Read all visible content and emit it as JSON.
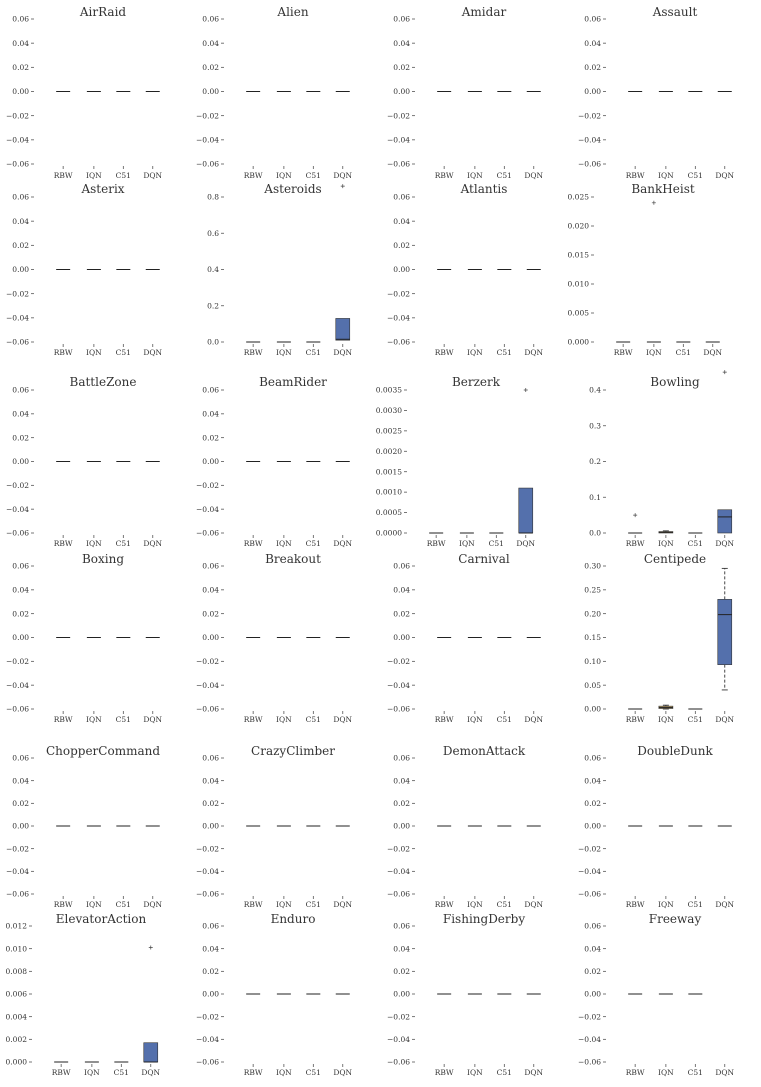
{
  "chart_data": [
    {
      "type": "box",
      "title": "AirRaid",
      "categories": [
        "RBW",
        "IQN",
        "C51",
        "DQN"
      ],
      "yticks": [
        "0.06",
        "0.04",
        "0.02",
        "0.00",
        "−0.02",
        "−0.04",
        "−0.06"
      ],
      "ylim": [
        -0.06,
        0.06
      ],
      "series": [
        {
          "name": "RBW",
          "median": 0
        },
        {
          "name": "IQN",
          "median": 0
        },
        {
          "name": "C51",
          "median": 0
        },
        {
          "name": "DQN",
          "median": 0
        }
      ]
    },
    {
      "type": "box",
      "title": "Alien",
      "categories": [
        "RBW",
        "IQN",
        "C51",
        "DQN"
      ],
      "yticks": [
        "0.06",
        "0.04",
        "0.02",
        "0.00",
        "−0.02",
        "−0.04",
        "−0.06"
      ],
      "ylim": [
        -0.06,
        0.06
      ],
      "series": [
        {
          "name": "RBW",
          "median": 0
        },
        {
          "name": "IQN",
          "median": 0
        },
        {
          "name": "C51",
          "median": 0
        },
        {
          "name": "DQN",
          "median": 0
        }
      ]
    },
    {
      "type": "box",
      "title": "Amidar",
      "categories": [
        "RBW",
        "IQN",
        "C51",
        "DQN"
      ],
      "yticks": [
        "0.06",
        "0.04",
        "0.02",
        "0.00",
        "−0.02",
        "−0.04",
        "−0.06"
      ],
      "ylim": [
        -0.06,
        0.06
      ],
      "series": [
        {
          "name": "RBW",
          "median": 0
        },
        {
          "name": "IQN",
          "median": 0
        },
        {
          "name": "C51",
          "median": 0
        },
        {
          "name": "DQN",
          "median": 0
        }
      ]
    },
    {
      "type": "box",
      "title": "Assault",
      "categories": [
        "RBW",
        "IQN",
        "C51",
        "DQN"
      ],
      "yticks": [
        "0.06",
        "0.04",
        "0.02",
        "0.00",
        "−0.02",
        "−0.04",
        "−0.06"
      ],
      "ylim": [
        -0.06,
        0.06
      ],
      "series": [
        {
          "name": "RBW",
          "median": 0
        },
        {
          "name": "IQN",
          "median": 0
        },
        {
          "name": "C51",
          "median": 0
        },
        {
          "name": "DQN",
          "median": 0
        }
      ]
    },
    {
      "type": "box",
      "title": "Asterix",
      "categories": [
        "RBW",
        "IQN",
        "C51",
        "DQN"
      ],
      "yticks": [
        "0.06",
        "0.04",
        "0.02",
        "0.00",
        "−0.02",
        "−0.04",
        "−0.06"
      ],
      "ylim": [
        -0.06,
        0.06
      ],
      "series": [
        {
          "name": "RBW",
          "median": 0
        },
        {
          "name": "IQN",
          "median": 0
        },
        {
          "name": "C51",
          "median": 0
        },
        {
          "name": "DQN",
          "median": 0
        }
      ]
    },
    {
      "type": "box",
      "title": "Asteroids",
      "categories": [
        "RBW",
        "IQN",
        "C51",
        "DQN"
      ],
      "yticks": [
        "0.8",
        "0.6",
        "0.4",
        "0.2",
        "0.0"
      ],
      "ylim": [
        0,
        0.8
      ],
      "series": [
        {
          "name": "RBW",
          "median": 0
        },
        {
          "name": "IQN",
          "median": 0
        },
        {
          "name": "C51",
          "median": 0
        },
        {
          "name": "DQN",
          "q1": 0.01,
          "median": 0.015,
          "q3": 0.13,
          "whisker_low": 0.01,
          "whisker_high": 0.13,
          "outliers": [
            0.86
          ]
        }
      ]
    },
    {
      "type": "box",
      "title": "Atlantis",
      "categories": [
        "RBW",
        "IQN",
        "C51",
        "DQN"
      ],
      "yticks": [
        "0.06",
        "0.04",
        "0.02",
        "0.00",
        "−0.02",
        "−0.04",
        "−0.06"
      ],
      "ylim": [
        -0.06,
        0.06
      ],
      "series": [
        {
          "name": "RBW",
          "median": 0
        },
        {
          "name": "IQN",
          "median": 0
        },
        {
          "name": "C51",
          "median": 0
        },
        {
          "name": "DQN",
          "median": 0
        }
      ]
    },
    {
      "type": "box",
      "title": "BankHeist",
      "categories": [
        "RBW",
        "IQN",
        "C51",
        "DQN"
      ],
      "yticks": [
        "0.025",
        "0.020",
        "0.015",
        "0.010",
        "0.005",
        "0.000"
      ],
      "ylim": [
        0,
        0.025
      ],
      "series": [
        {
          "name": "RBW",
          "median": 0
        },
        {
          "name": "IQN",
          "median": 0,
          "outliers": [
            0.024
          ]
        },
        {
          "name": "C51",
          "median": 0
        },
        {
          "name": "DQN",
          "median": 0
        }
      ]
    },
    {
      "type": "box",
      "title": "BattleZone",
      "categories": [
        "RBW",
        "IQN",
        "C51",
        "DQN"
      ],
      "yticks": [
        "0.06",
        "0.04",
        "0.02",
        "0.00",
        "−0.02",
        "−0.04",
        "−0.06"
      ],
      "ylim": [
        -0.06,
        0.06
      ],
      "series": [
        {
          "name": "RBW",
          "median": 0
        },
        {
          "name": "IQN",
          "median": 0
        },
        {
          "name": "C51",
          "median": 0
        },
        {
          "name": "DQN",
          "median": 0
        }
      ]
    },
    {
      "type": "box",
      "title": "BeamRider",
      "categories": [
        "RBW",
        "IQN",
        "C51",
        "DQN"
      ],
      "yticks": [
        "0.06",
        "0.04",
        "0.02",
        "0.00",
        "−0.02",
        "−0.04",
        "−0.06"
      ],
      "ylim": [
        -0.06,
        0.06
      ],
      "series": [
        {
          "name": "RBW",
          "median": 0
        },
        {
          "name": "IQN",
          "median": 0
        },
        {
          "name": "C51",
          "median": 0
        },
        {
          "name": "DQN",
          "median": 0
        }
      ]
    },
    {
      "type": "box",
      "title": "Berzerk",
      "categories": [
        "RBW",
        "IQN",
        "C51",
        "DQN"
      ],
      "yticks": [
        "0.0035",
        "0.0030",
        "0.0025",
        "0.0020",
        "0.0015",
        "0.0010",
        "0.0005",
        "0.0000"
      ],
      "ylim": [
        0,
        0.0035
      ],
      "series": [
        {
          "name": "RBW",
          "median": 0
        },
        {
          "name": "IQN",
          "median": 0
        },
        {
          "name": "C51",
          "median": 0
        },
        {
          "name": "DQN",
          "q1": 0,
          "median": 0,
          "q3": 0.0011,
          "whisker_low": 0,
          "whisker_high": 0.0011,
          "outliers": [
            0.0035
          ]
        }
      ]
    },
    {
      "type": "box",
      "title": "Bowling",
      "categories": [
        "RBW",
        "IQN",
        "C51",
        "DQN"
      ],
      "yticks": [
        "0.4",
        "0.3",
        "0.2",
        "0.1",
        "0.0"
      ],
      "ylim": [
        0,
        0.4
      ],
      "series": [
        {
          "name": "RBW",
          "median": 0,
          "outliers": [
            0.05
          ]
        },
        {
          "name": "IQN",
          "q1": 0,
          "median": 0.002,
          "q3": 0.004,
          "whisker_low": 0,
          "whisker_high": 0.006
        },
        {
          "name": "C51",
          "median": 0
        },
        {
          "name": "DQN",
          "q1": 0,
          "median": 0.045,
          "q3": 0.065,
          "whisker_low": 0,
          "whisker_high": 0.065,
          "outliers": [
            0.45
          ]
        }
      ]
    },
    {
      "type": "box",
      "title": "Boxing",
      "categories": [
        "RBW",
        "IQN",
        "C51",
        "DQN"
      ],
      "yticks": [
        "0.06",
        "0.04",
        "0.02",
        "0.00",
        "−0.02",
        "−0.04",
        "−0.06"
      ],
      "ylim": [
        -0.06,
        0.06
      ],
      "series": [
        {
          "name": "RBW",
          "median": 0
        },
        {
          "name": "IQN",
          "median": 0
        },
        {
          "name": "C51",
          "median": 0
        },
        {
          "name": "DQN",
          "median": 0
        }
      ]
    },
    {
      "type": "box",
      "title": "Breakout",
      "categories": [
        "RBW",
        "IQN",
        "C51",
        "DQN"
      ],
      "yticks": [
        "0.06",
        "0.04",
        "0.02",
        "0.00",
        "−0.02",
        "−0.04",
        "−0.06"
      ],
      "ylim": [
        -0.06,
        0.06
      ],
      "series": [
        {
          "name": "RBW",
          "median": 0
        },
        {
          "name": "IQN",
          "median": 0
        },
        {
          "name": "C51",
          "median": 0
        },
        {
          "name": "DQN",
          "median": 0
        }
      ]
    },
    {
      "type": "box",
      "title": "Carnival",
      "categories": [
        "RBW",
        "IQN",
        "C51",
        "DQN"
      ],
      "yticks": [
        "0.06",
        "0.04",
        "0.02",
        "0.00",
        "−0.02",
        "−0.04",
        "−0.06"
      ],
      "ylim": [
        -0.06,
        0.06
      ],
      "series": [
        {
          "name": "RBW",
          "median": 0
        },
        {
          "name": "IQN",
          "median": 0
        },
        {
          "name": "C51",
          "median": 0
        },
        {
          "name": "DQN",
          "median": 0
        }
      ]
    },
    {
      "type": "box",
      "title": "Centipede",
      "categories": [
        "RBW",
        "IQN",
        "C51",
        "DQN"
      ],
      "yticks": [
        "0.30",
        "0.25",
        "0.20",
        "0.15",
        "0.10",
        "0.05",
        "0.00"
      ],
      "ylim": [
        0,
        0.3
      ],
      "series": [
        {
          "name": "RBW",
          "median": 0
        },
        {
          "name": "IQN",
          "q1": 0.001,
          "median": 0.003,
          "q3": 0.006,
          "whisker_low": 0,
          "whisker_high": 0.008
        },
        {
          "name": "C51",
          "median": 0
        },
        {
          "name": "DQN",
          "q1": 0.093,
          "median": 0.198,
          "q3": 0.23,
          "whisker_low": 0.04,
          "whisker_high": 0.295
        }
      ]
    },
    {
      "type": "box",
      "title": "ChopperCommand",
      "categories": [
        "RBW",
        "IQN",
        "C51",
        "DQN"
      ],
      "yticks": [
        "0.06",
        "0.04",
        "0.02",
        "0.00",
        "−0.02",
        "−0.04",
        "−0.06"
      ],
      "ylim": [
        -0.06,
        0.06
      ],
      "series": [
        {
          "name": "RBW",
          "median": 0
        },
        {
          "name": "IQN",
          "median": 0
        },
        {
          "name": "C51",
          "median": 0
        },
        {
          "name": "DQN",
          "median": 0
        }
      ]
    },
    {
      "type": "box",
      "title": "CrazyClimber",
      "categories": [
        "RBW",
        "IQN",
        "C51",
        "DQN"
      ],
      "yticks": [
        "0.06",
        "0.04",
        "0.02",
        "0.00",
        "−0.02",
        "−0.04",
        "−0.06"
      ],
      "ylim": [
        -0.06,
        0.06
      ],
      "series": [
        {
          "name": "RBW",
          "median": 0
        },
        {
          "name": "IQN",
          "median": 0
        },
        {
          "name": "C51",
          "median": 0
        },
        {
          "name": "DQN",
          "median": 0
        }
      ]
    },
    {
      "type": "box",
      "title": "DemonAttack",
      "categories": [
        "RBW",
        "IQN",
        "C51",
        "DQN"
      ],
      "yticks": [
        "0.06",
        "0.04",
        "0.02",
        "0.00",
        "−0.02",
        "−0.04",
        "−0.06"
      ],
      "ylim": [
        -0.06,
        0.06
      ],
      "series": [
        {
          "name": "RBW",
          "median": 0
        },
        {
          "name": "IQN",
          "median": 0
        },
        {
          "name": "C51",
          "median": 0
        },
        {
          "name": "DQN",
          "median": 0
        }
      ]
    },
    {
      "type": "box",
      "title": "DoubleDunk",
      "categories": [
        "RBW",
        "IQN",
        "C51",
        "DQN"
      ],
      "yticks": [
        "0.06",
        "0.04",
        "0.02",
        "0.00",
        "−0.02",
        "−0.04",
        "−0.06"
      ],
      "ylim": [
        -0.06,
        0.06
      ],
      "series": [
        {
          "name": "RBW",
          "median": 0
        },
        {
          "name": "IQN",
          "median": 0
        },
        {
          "name": "C51",
          "median": 0
        },
        {
          "name": "DQN",
          "median": 0
        }
      ]
    },
    {
      "type": "box",
      "title": "ElevatorAction",
      "categories": [
        "RBW",
        "IQN",
        "C51",
        "DQN"
      ],
      "yticks": [
        "0.012",
        "0.010",
        "0.008",
        "0.006",
        "0.004",
        "0.002",
        "0.000"
      ],
      "ylim": [
        0,
        0.012
      ],
      "series": [
        {
          "name": "RBW",
          "median": 0
        },
        {
          "name": "IQN",
          "median": 0
        },
        {
          "name": "C51",
          "median": 0
        },
        {
          "name": "DQN",
          "q1": 0,
          "median": 0,
          "q3": 0.0017,
          "whisker_low": 0,
          "whisker_high": 0.0017,
          "outliers": [
            0.0101
          ]
        }
      ]
    },
    {
      "type": "box",
      "title": "Enduro",
      "categories": [
        "RBW",
        "IQN",
        "C51",
        "DQN"
      ],
      "yticks": [
        "0.06",
        "0.04",
        "0.02",
        "0.00",
        "−0.02",
        "−0.04",
        "−0.06"
      ],
      "ylim": [
        -0.06,
        0.06
      ],
      "series": [
        {
          "name": "RBW",
          "median": 0
        },
        {
          "name": "IQN",
          "median": 0
        },
        {
          "name": "C51",
          "median": 0
        },
        {
          "name": "DQN",
          "median": 0
        }
      ]
    },
    {
      "type": "box",
      "title": "FishingDerby",
      "categories": [
        "RBW",
        "IQN",
        "C51",
        "DQN"
      ],
      "yticks": [
        "0.06",
        "0.04",
        "0.02",
        "0.00",
        "−0.02",
        "−0.04",
        "−0.06"
      ],
      "ylim": [
        -0.06,
        0.06
      ],
      "series": [
        {
          "name": "RBW",
          "median": 0
        },
        {
          "name": "IQN",
          "median": 0
        },
        {
          "name": "C51",
          "median": 0
        },
        {
          "name": "DQN",
          "median": 0
        }
      ]
    },
    {
      "type": "box",
      "title": "Freeway",
      "categories": [
        "RBW",
        "IQN",
        "C51",
        "DQN"
      ],
      "yticks": [
        "0.06",
        "0.04",
        "0.02",
        "0.00",
        "−0.02",
        "−0.04",
        "−0.06"
      ],
      "ylim": [
        -0.06,
        0.06
      ],
      "series": [
        {
          "name": "RBW",
          "median": 0
        },
        {
          "name": "IQN",
          "median": 0
        },
        {
          "name": "C51",
          "median": 0
        },
        {
          "name": "DQN"
        }
      ]
    }
  ],
  "colors": {
    "box_fill": "#5470ac",
    "iqn_box_fill": "#c2a66a",
    "median": "#222222",
    "text": "#333333",
    "tick": "#555555"
  }
}
